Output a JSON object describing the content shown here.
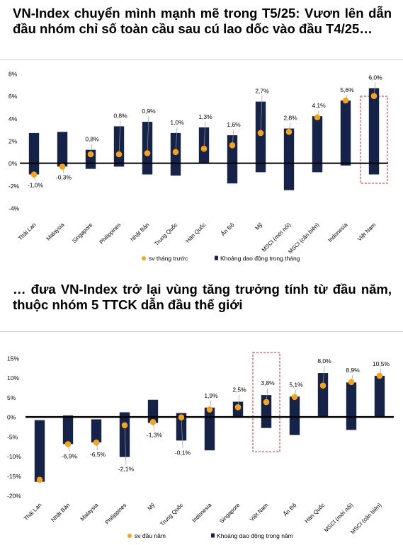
{
  "headings": {
    "top": "VN-Index chuyển mình mạnh mẽ trong T5/25: Vươn lên dẫn đầu nhóm chỉ số toàn cầu sau cú lao dốc vào đầu T4/25…",
    "bottom": "… đưa VN-Index trở lại vùng tăng trưởng tính từ đầu năm, thuộc nhóm 5 TTCK dẫn đầu thế giới"
  },
  "colors": {
    "bar": "#142347",
    "dot": "#F7A21B",
    "highlight": "#E0202A",
    "zero_line": "#000000",
    "text": "#000000"
  },
  "chart_data": [
    {
      "type": "bar",
      "subtype": "floating-range-with-point",
      "categories": [
        "Thái Lan",
        "Malaysia",
        "Singapore",
        "Philippines",
        "Nhật Bản",
        "Trung Quốc",
        "Hàn Quốc",
        "Ấn Độ",
        "Mỹ",
        "MSCI (mới nổi)",
        "MSCI (cận biên)",
        "Indonesia",
        "Việt Nam"
      ],
      "series": [
        {
          "name": "Khoảng dao động trong tháng",
          "kind": "range",
          "low": [
            -1.0,
            -0.3,
            -0.5,
            -0.3,
            -1.0,
            -1.1,
            0.0,
            -1.8,
            -0.8,
            -2.4,
            -0.8,
            -0.2,
            -1.0
          ],
          "high": [
            2.7,
            2.8,
            1.2,
            3.3,
            3.7,
            2.7,
            3.2,
            2.5,
            5.5,
            3.1,
            4.2,
            5.6,
            6.7
          ]
        },
        {
          "name": "sv tháng trước",
          "kind": "point",
          "values": [
            -1.0,
            -0.3,
            0.8,
            0.8,
            0.9,
            1.0,
            1.3,
            1.6,
            2.7,
            2.8,
            4.1,
            5.6,
            6.0
          ]
        }
      ],
      "labels": [
        "-1,0%",
        "-0,3%",
        "0,8%",
        "0,8%",
        "0,9%",
        "1,0%",
        "1,3%",
        "1,6%",
        "2,7%",
        "2,8%",
        "4,1%",
        "5,6%",
        "6,0%"
      ],
      "yticks": [
        "8%",
        "6%",
        "4%",
        "2%",
        "0%",
        "-2%",
        "-4%"
      ],
      "ylim": [
        -4,
        8
      ],
      "highlight_category": "Việt Nam",
      "legend": [
        "sv tháng trước",
        "Khoảng dao động trong tháng"
      ],
      "legend_position": "bottom",
      "grid": false
    },
    {
      "type": "bar",
      "subtype": "floating-range-with-point",
      "categories": [
        "Thái Lan",
        "Nhật Bản",
        "Malaysia",
        "Philippines",
        "Mỹ",
        "Trung Quốc",
        "Indonesia",
        "Singapore",
        "Việt Nam",
        "Ấn Độ",
        "Hàn Quốc",
        "MSCI (mới nổi)",
        "MSCI (cận biên)"
      ],
      "series": [
        {
          "name": "Khoảng dao động trong năm",
          "kind": "range",
          "low": [
            -16.5,
            -6.9,
            -6.5,
            -10.2,
            -1.5,
            -6.0,
            -8.5,
            -0.2,
            -2.8,
            -4.6,
            0.0,
            -3.3,
            0.0
          ],
          "high": [
            -0.8,
            0.4,
            -0.6,
            1.2,
            4.4,
            1.0,
            2.4,
            3.9,
            5.6,
            5.2,
            11.2,
            8.8,
            10.5
          ]
        },
        {
          "name": "sv đầu năm",
          "kind": "point",
          "values": [
            -16.0,
            -6.9,
            -6.5,
            -2.1,
            -1.3,
            -0.1,
            1.9,
            2.5,
            3.8,
            5.1,
            8.0,
            8.9,
            10.5
          ]
        }
      ],
      "labels": [
        "",
        "-6,9%",
        "-6,5%",
        "-2,1%",
        "-1,3%",
        "-0,1%",
        "1,9%",
        "2,5%",
        "3,8%",
        "5,1%",
        "8,0%",
        "8,9%",
        "10,5%"
      ],
      "yticks": [
        "15%",
        "10%",
        "5%",
        "0%",
        "-5%",
        "-10%",
        "-15%",
        "-20%"
      ],
      "ylim": [
        -20,
        15
      ],
      "highlight_category": "Việt Nam",
      "legend": [
        "sv đầu năm",
        "Khoảng dao động trong năm"
      ],
      "legend_position": "bottom",
      "grid": false
    }
  ]
}
